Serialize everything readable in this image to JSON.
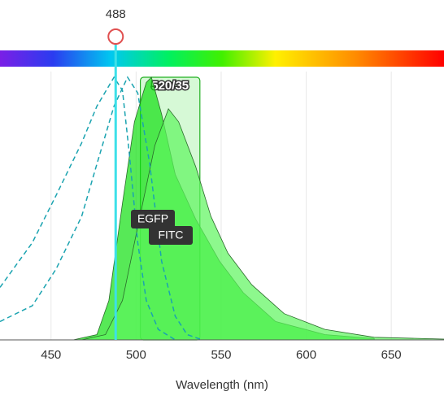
{
  "chart_data": {
    "type": "spectra",
    "xlabel": "Wavelength (nm)",
    "xlim": [
      420,
      681
    ],
    "ylim": [
      0,
      1
    ],
    "xticks": [
      450,
      500,
      550,
      600,
      650
    ],
    "grid": true,
    "excitation_color": "#1aa3b0",
    "laser": 488,
    "filter": {
      "label": "520/35",
      "range": [
        502.5,
        537.5
      ]
    },
    "series": [
      {
        "name": "EGFP",
        "color": "#10e010",
        "ex_x": [
          420,
          439,
          453,
          468,
          477,
          487,
          492,
          496,
          501,
          506,
          513,
          523
        ],
        "ex_values": [
          0.2,
          0.37,
          0.55,
          0.75,
          0.89,
          1.0,
          0.95,
          0.71,
          0.37,
          0.15,
          0.04,
          0
        ],
        "em_x": [
          463,
          477,
          484,
          492,
          499,
          506,
          509,
          515,
          523,
          535,
          549,
          563,
          582,
          611,
          640
        ],
        "em_values": [
          0,
          0.02,
          0.15,
          0.52,
          0.83,
          0.98,
          1.0,
          0.86,
          0.63,
          0.46,
          0.3,
          0.18,
          0.07,
          0.02,
          0.005
        ]
      },
      {
        "name": "FITC",
        "color": "#5cf55c",
        "ex_x": [
          420,
          439,
          453,
          468,
          477,
          487,
          495,
          501,
          508,
          515,
          523,
          530,
          539
        ],
        "ex_values": [
          0.07,
          0.13,
          0.27,
          0.47,
          0.67,
          0.89,
          1.0,
          0.94,
          0.67,
          0.3,
          0.09,
          0.02,
          0
        ],
        "em_x": [
          468,
          482,
          492,
          501,
          511,
          519,
          525,
          535,
          544,
          554,
          568,
          587,
          611,
          640,
          681
        ],
        "em_values": [
          0,
          0.02,
          0.15,
          0.43,
          0.74,
          0.88,
          0.83,
          0.66,
          0.47,
          0.33,
          0.21,
          0.1,
          0.04,
          0.01,
          0.003
        ]
      }
    ]
  }
}
